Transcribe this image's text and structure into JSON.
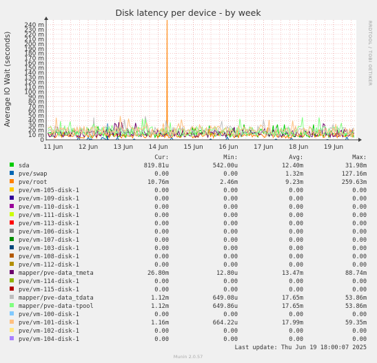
{
  "chart_data": {
    "type": "line",
    "title": "Disk latency per device - by week",
    "ylabel": "Average IO Wait (seconds)",
    "xlabel": "",
    "x_tick_labels": [
      "11 Jun",
      "12 Jun",
      "13 Jun",
      "14 Jun",
      "15 Jun",
      "16 Jun",
      "17 Jun",
      "18 Jun",
      "19 Jun"
    ],
    "y_tick_labels": [
      "0",
      "10 m",
      "20 m",
      "30 m",
      "40 m",
      "50 m",
      "60 m",
      "70 m",
      "80 m",
      "90 m",
      "100 m",
      "110 m",
      "120 m",
      "130 m",
      "140 m",
      "150 m",
      "160 m",
      "170 m",
      "180 m",
      "190 m",
      "200 m",
      "210 m",
      "220 m",
      "230 m",
      "240 m"
    ],
    "ylim": [
      0,
      0.25
    ],
    "x_domain_days": [
      10.8,
      19.65
    ],
    "grid": true,
    "grid_color": "#f0a0a0",
    "axis_color": "#404040",
    "columns": [
      "Cur:",
      "Min:",
      "Avg:",
      "Max:"
    ],
    "series": [
      {
        "name": "sda",
        "color": "#00cc00",
        "cur": "819.81u",
        "min": "542.00u",
        "avg": "12.40m",
        "max": "31.98m",
        "avg_value": 0.0124,
        "max_value": 0.03198
      },
      {
        "name": "pve/swap",
        "color": "#0066b3",
        "cur": "0.00",
        "min": "0.00",
        "avg": "1.32m",
        "max": "127.16m",
        "avg_value": 0.00132,
        "max_value": 0.12716
      },
      {
        "name": "pve/root",
        "color": "#ff8000",
        "cur": "10.76m",
        "min": "2.46m",
        "avg": "9.23m",
        "max": "259.63m",
        "avg_value": 0.00923,
        "max_value": 0.25963
      },
      {
        "name": "pve/vm-105-disk-1",
        "color": "#ffcc00",
        "cur": "0.00",
        "min": "0.00",
        "avg": "0.00",
        "max": "0.00",
        "avg_value": 0,
        "max_value": 0
      },
      {
        "name": "pve/vm-109-disk-1",
        "color": "#330099",
        "cur": "0.00",
        "min": "0.00",
        "avg": "0.00",
        "max": "0.00",
        "avg_value": 0,
        "max_value": 0
      },
      {
        "name": "pve/vm-110-disk-1",
        "color": "#990099",
        "cur": "0.00",
        "min": "0.00",
        "avg": "0.00",
        "max": "0.00",
        "avg_value": 0,
        "max_value": 0
      },
      {
        "name": "pve/vm-111-disk-1",
        "color": "#ccff00",
        "cur": "0.00",
        "min": "0.00",
        "avg": "0.00",
        "max": "0.00",
        "avg_value": 0,
        "max_value": 0
      },
      {
        "name": "pve/vm-113-disk-1",
        "color": "#ff0000",
        "cur": "0.00",
        "min": "0.00",
        "avg": "0.00",
        "max": "0.00",
        "avg_value": 0,
        "max_value": 0
      },
      {
        "name": "pve/vm-106-disk-1",
        "color": "#808080",
        "cur": "0.00",
        "min": "0.00",
        "avg": "0.00",
        "max": "0.00",
        "avg_value": 0,
        "max_value": 0
      },
      {
        "name": "pve/vm-107-disk-1",
        "color": "#008f00",
        "cur": "0.00",
        "min": "0.00",
        "avg": "0.00",
        "max": "0.00",
        "avg_value": 0,
        "max_value": 0
      },
      {
        "name": "pve/vm-103-disk-1",
        "color": "#00487d",
        "cur": "0.00",
        "min": "0.00",
        "avg": "0.00",
        "max": "0.00",
        "avg_value": 0,
        "max_value": 0
      },
      {
        "name": "pve/vm-108-disk-1",
        "color": "#b35a00",
        "cur": "0.00",
        "min": "0.00",
        "avg": "0.00",
        "max": "0.00",
        "avg_value": 0,
        "max_value": 0
      },
      {
        "name": "pve/vm-112-disk-1",
        "color": "#b38f00",
        "cur": "0.00",
        "min": "0.00",
        "avg": "0.00",
        "max": "0.00",
        "avg_value": 0,
        "max_value": 0
      },
      {
        "name": "mapper/pve-data_tmeta",
        "color": "#6b006b",
        "cur": "26.80m",
        "min": "12.80u",
        "avg": "13.47m",
        "max": "88.74m",
        "avg_value": 0.01347,
        "max_value": 0.08874
      },
      {
        "name": "pve/vm-114-disk-1",
        "color": "#8fb300",
        "cur": "0.00",
        "min": "0.00",
        "avg": "0.00",
        "max": "0.00",
        "avg_value": 0,
        "max_value": 0
      },
      {
        "name": "pve/vm-115-disk-1",
        "color": "#b30000",
        "cur": "0.00",
        "min": "0.00",
        "avg": "0.00",
        "max": "0.00",
        "avg_value": 0,
        "max_value": 0
      },
      {
        "name": "mapper/pve-data_tdata",
        "color": "#bebebe",
        "cur": "1.12m",
        "min": "649.08u",
        "avg": "17.65m",
        "max": "53.86m",
        "avg_value": 0.01765,
        "max_value": 0.05386
      },
      {
        "name": "mapper/pve-data-tpool",
        "color": "#80ff80",
        "cur": "1.12m",
        "min": "649.86u",
        "avg": "17.65m",
        "max": "53.86m",
        "avg_value": 0.01765,
        "max_value": 0.05386
      },
      {
        "name": "pve/vm-100-disk-1",
        "color": "#80c9ff",
        "cur": "0.00",
        "min": "0.00",
        "avg": "0.00",
        "max": "0.00",
        "avg_value": 0,
        "max_value": 0
      },
      {
        "name": "pve/vm-101-disk-1",
        "color": "#ffc080",
        "cur": "1.16m",
        "min": "664.22u",
        "avg": "17.99m",
        "max": "59.35m",
        "avg_value": 0.01799,
        "max_value": 0.05935
      },
      {
        "name": "pve/vm-102-disk-1",
        "color": "#ffe680",
        "cur": "0.00",
        "min": "0.00",
        "avg": "0.00",
        "max": "0.00",
        "avg_value": 0,
        "max_value": 0
      },
      {
        "name": "pve/vm-104-disk-1",
        "color": "#aa80ff",
        "cur": "0.00",
        "min": "0.00",
        "avg": "0.00",
        "max": "0.00",
        "avg_value": 0,
        "max_value": 0
      }
    ],
    "spikes": [
      {
        "series": "pve/root",
        "x_day": 14.25,
        "y": 0.25963
      },
      {
        "series": "pve/swap",
        "x_day": 12.55,
        "y": 0.034
      }
    ],
    "last_update": "Last update: Thu Jun 19 18:00:07 2025",
    "watermark": "RRDTOOL / TOBI OETIKER",
    "footer": "Munin 2.0.57"
  }
}
